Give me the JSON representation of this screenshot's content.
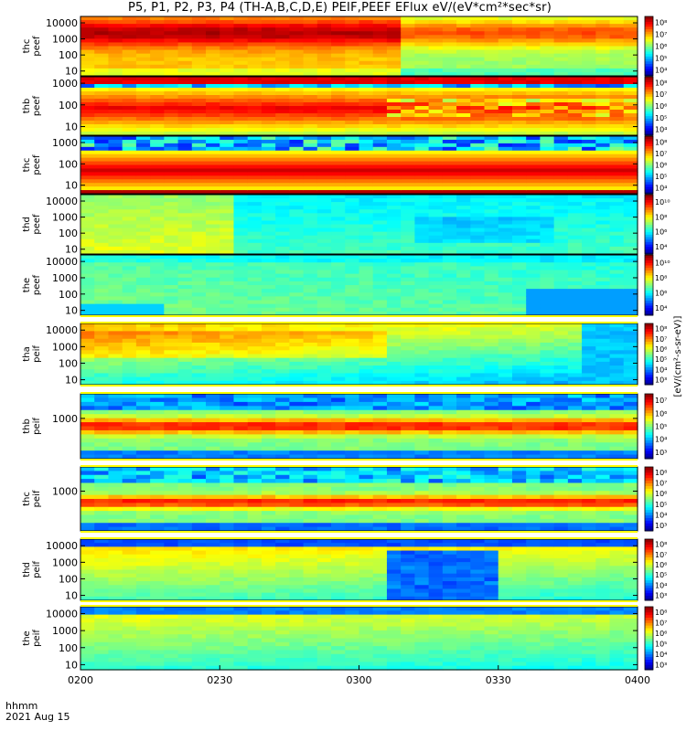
{
  "figure": {
    "title": "P5, P1, P2, P3, P4 (TH-A,B,C,D,E) PEIF,PEEF EFlux eV/(eV*cm²*sec*sr)",
    "time_label": "hhmm",
    "date_label": "2021 Aug 15",
    "colorbar_unit": "[eV/(cm²-s-sr-eV)]"
  },
  "chart_data": {
    "type": "heatmap",
    "x": {
      "type": "time",
      "range": [
        "0200",
        "0400"
      ],
      "ticks": [
        "0200",
        "0230",
        "0300",
        "0330",
        "0400"
      ]
    },
    "panels": [
      {
        "label": [
          "thc",
          "peef"
        ],
        "yticks": [
          "10",
          "100",
          "1000",
          "10000"
        ],
        "ylog": [
          0.7,
          4.4
        ],
        "colorbar": [
          "10⁴",
          "10⁵",
          "10⁶",
          "10⁷",
          "10⁸"
        ],
        "zlog": [
          3.5,
          8.2
        ],
        "gaps": []
      },
      {
        "label": [
          "thb",
          "peef"
        ],
        "yticks": [
          "10",
          "100",
          "1000"
        ],
        "ylog": [
          0.6,
          3.3
        ],
        "colorbar": [
          "10⁴",
          "10⁵",
          "10⁶",
          "10⁷",
          "10⁸"
        ],
        "zlog": [
          3.5,
          8.2
        ],
        "gaps": []
      },
      {
        "label": [
          "thc",
          "peef"
        ],
        "yticks": [
          "10",
          "100",
          "1000"
        ],
        "ylog": [
          0.6,
          3.3
        ],
        "colorbar": [
          "10⁴",
          "10⁵",
          "10⁶",
          "10⁷",
          "10⁸"
        ],
        "zlog": [
          3.5,
          8.2
        ],
        "gaps": []
      },
      {
        "label": [
          "thd",
          "peef"
        ],
        "yticks": [
          "10",
          "100",
          "1000",
          "10000"
        ],
        "ylog": [
          0.7,
          4.4
        ],
        "colorbar": [
          "10⁴",
          "10⁶",
          "10⁸",
          "10¹⁰"
        ],
        "zlog": [
          3.5,
          10.5
        ],
        "gaps": []
      },
      {
        "label": [
          "the",
          "peef"
        ],
        "yticks": [
          "10",
          "100",
          "1000",
          "10000"
        ],
        "ylog": [
          0.7,
          4.4
        ],
        "colorbar": [
          "10⁴",
          "10⁶",
          "10⁸",
          "10¹⁰"
        ],
        "zlog": [
          3.5,
          10.5
        ],
        "gaps": []
      },
      {
        "label": [
          "tha",
          "peif"
        ],
        "yticks": [
          "10",
          "100",
          "1000",
          "10000"
        ],
        "ylog": [
          0.7,
          4.4
        ],
        "colorbar": [
          "10³",
          "10⁴",
          "10⁵",
          "10⁶",
          "10⁷",
          "10⁸"
        ],
        "zlog": [
          2.5,
          8.3
        ],
        "gaps": [
          "top"
        ]
      },
      {
        "label": [
          "thb",
          "peif"
        ],
        "yticks": [
          "1000"
        ],
        "ylog": [
          0.7,
          4.4
        ],
        "colorbar": [
          "10³",
          "10⁴",
          "10⁵",
          "10⁶",
          "10⁷"
        ],
        "zlog": [
          2.5,
          7.4
        ],
        "gaps": [
          "top",
          "bottom"
        ]
      },
      {
        "label": [
          "thc",
          "peif"
        ],
        "yticks": [
          "1000"
        ],
        "ylog": [
          0.7,
          4.4
        ],
        "colorbar": [
          "10³",
          "10⁴",
          "10⁵",
          "10⁶",
          "10⁷",
          "10⁸"
        ],
        "zlog": [
          2.5,
          8.3
        ],
        "gaps": [
          "top",
          "bottom"
        ]
      },
      {
        "label": [
          "thd",
          "peif"
        ],
        "yticks": [
          "10",
          "100",
          "1000",
          "10000"
        ],
        "ylog": [
          0.7,
          4.4
        ],
        "colorbar": [
          "10³",
          "10⁴",
          "10⁵",
          "10⁶",
          "10⁷",
          "10⁸"
        ],
        "zlog": [
          2.5,
          8.3
        ],
        "gaps": [
          "top"
        ]
      },
      {
        "label": [
          "the",
          "peif"
        ],
        "yticks": [
          "10",
          "100",
          "1000",
          "10000"
        ],
        "ylog": [
          0.7,
          4.4
        ],
        "colorbar": [
          "10³",
          "10⁴",
          "10⁵",
          "10⁶",
          "10⁷",
          "10⁸"
        ],
        "zlog": [
          2.5,
          8.3
        ],
        "gaps": [
          "top"
        ]
      }
    ]
  }
}
